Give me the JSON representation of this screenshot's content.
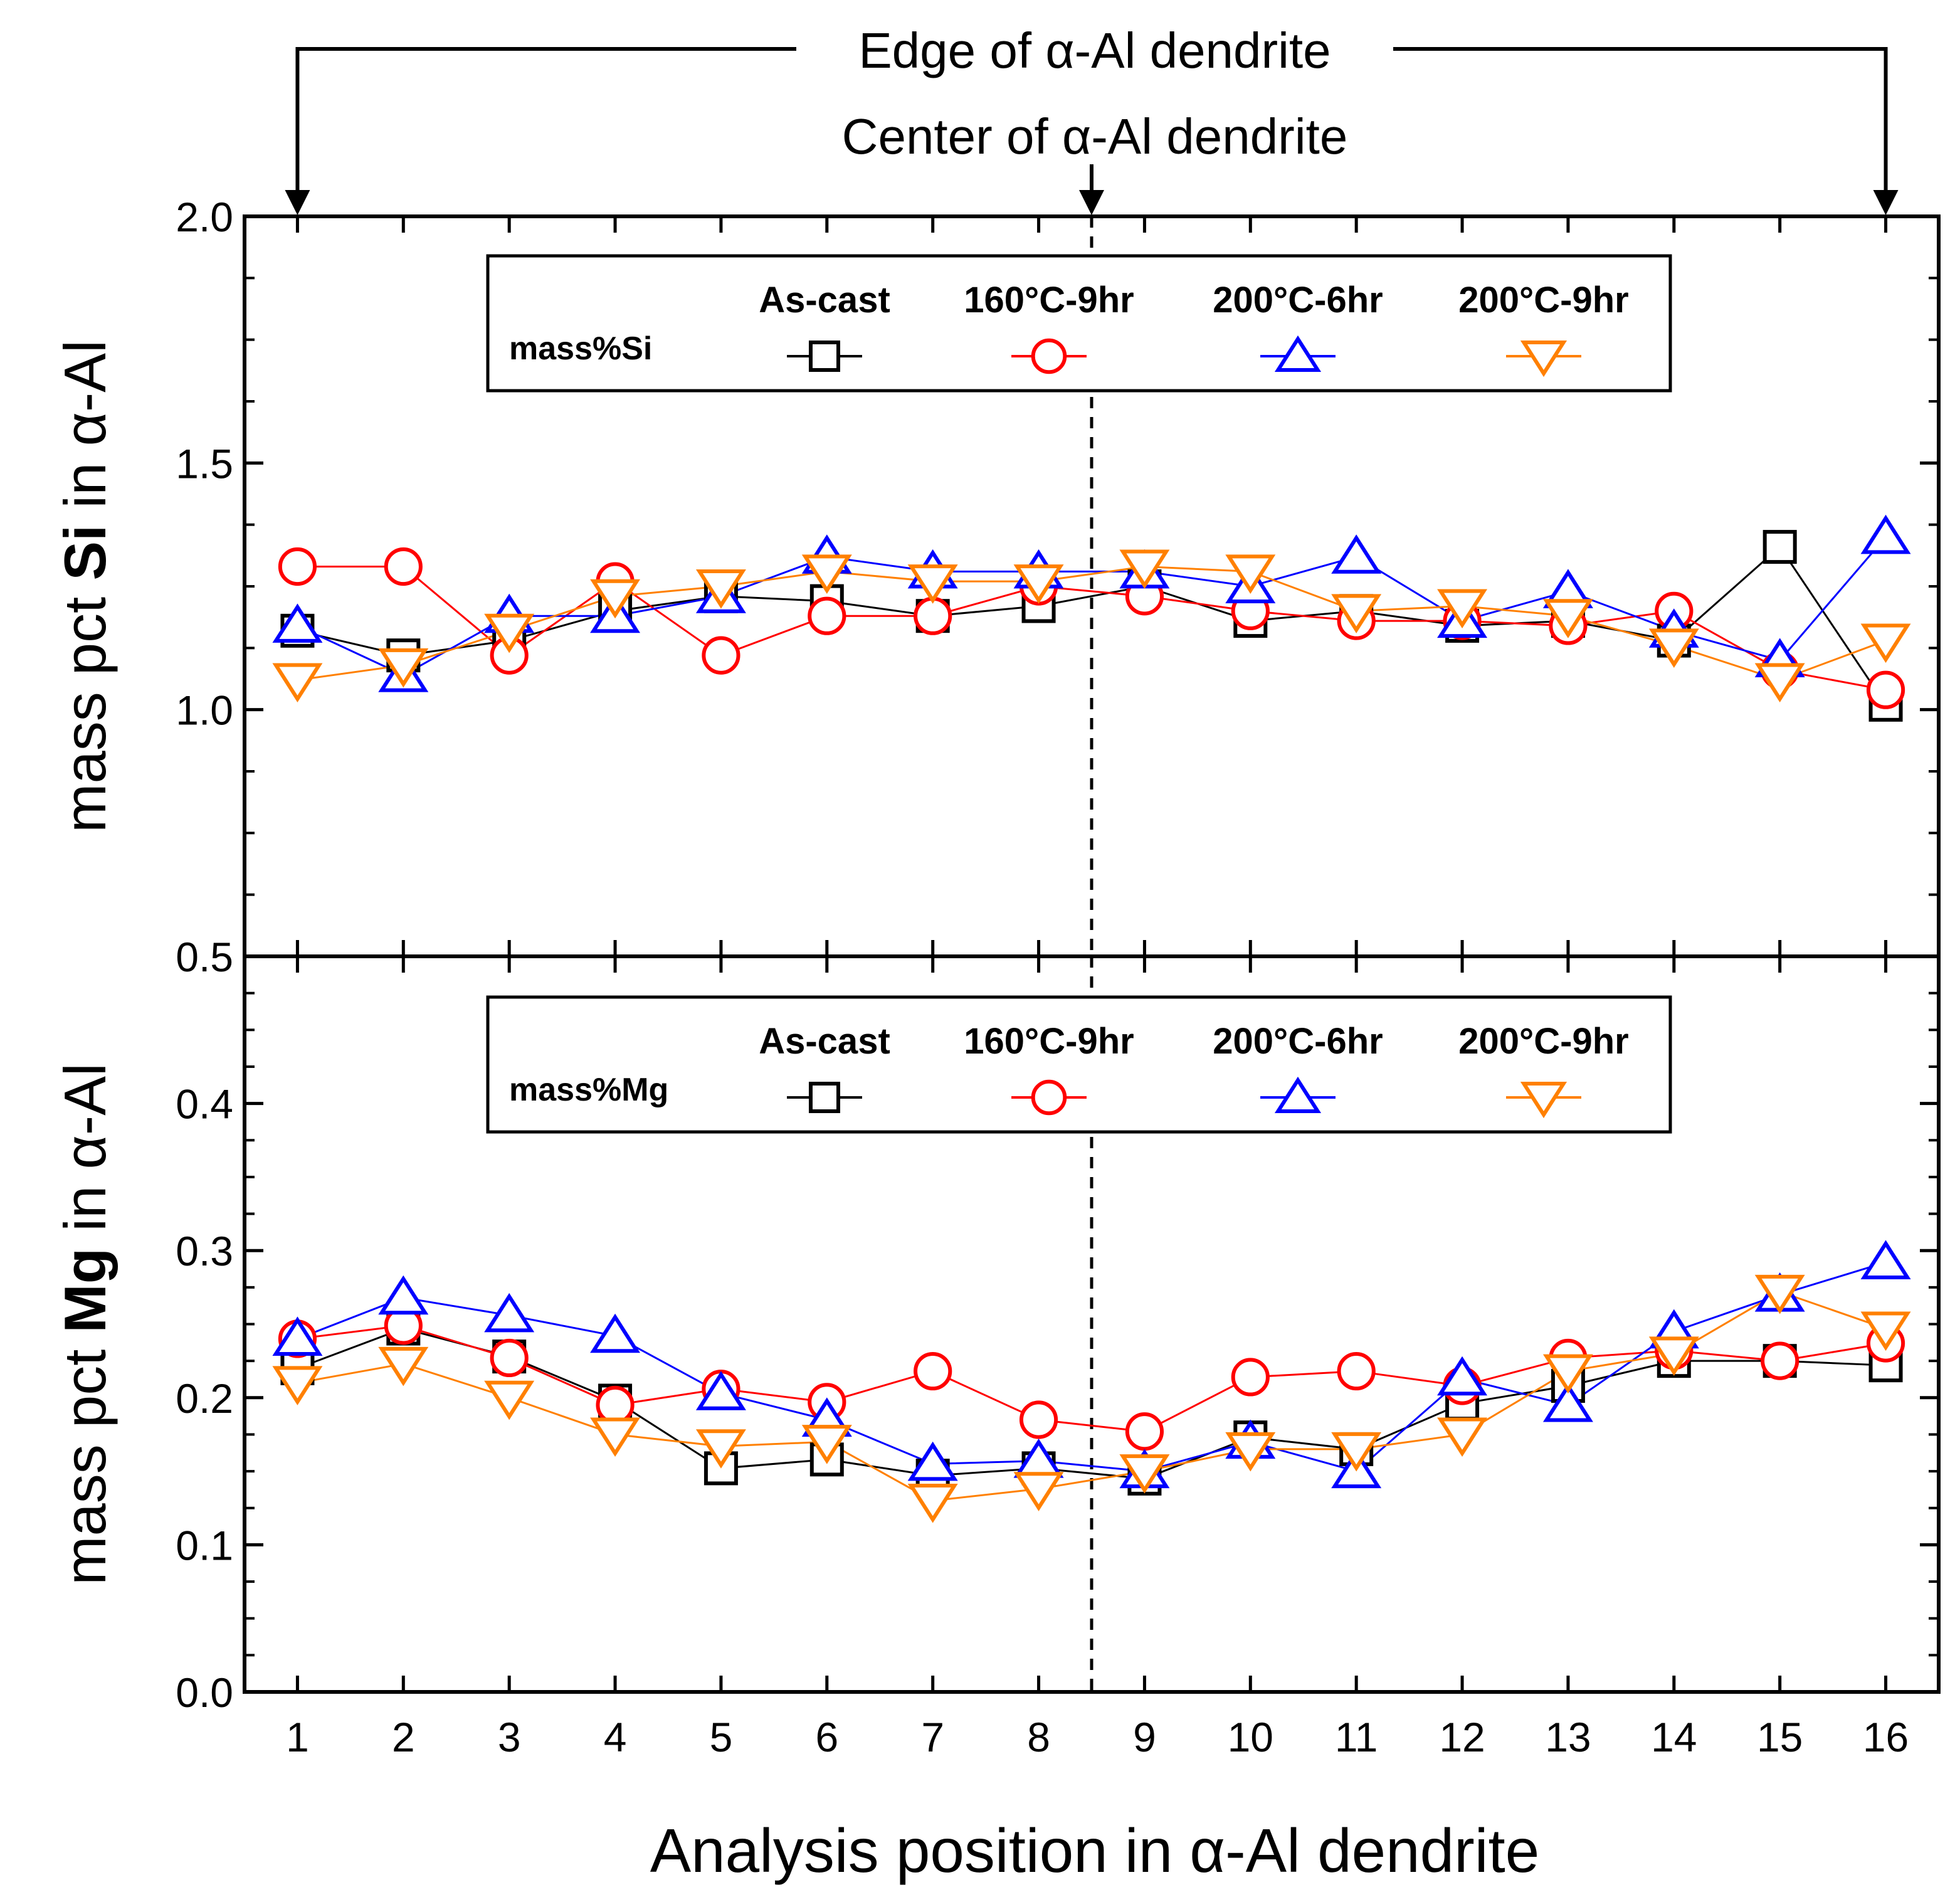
{
  "chart_data": {
    "type": "line",
    "x": [
      1,
      2,
      3,
      4,
      5,
      6,
      7,
      8,
      9,
      10,
      11,
      12,
      13,
      14,
      15,
      16
    ],
    "xlabel": "Analysis position in α-Al dendrite",
    "annotations": {
      "edge": "Edge of α-Al dendrite",
      "center": "Center of α-Al dendrite"
    },
    "panels": [
      {
        "id": "si",
        "ylabel_pre": "mass pct ",
        "ylabel_bold": "Si",
        "ylabel_post": " in α-Al",
        "ylim": [
          0.5,
          2.0
        ],
        "yticks": [
          0.5,
          1.0,
          1.5,
          2.0
        ],
        "ytick_labels": [
          "0.5",
          "1.0",
          "1.5",
          "2.0"
        ],
        "legend_label": "mass%Si",
        "series": [
          {
            "name": "As-cast",
            "color": "#000000",
            "marker": "square",
            "values": [
              1.16,
              1.11,
              1.14,
              1.2,
              1.23,
              1.22,
              1.19,
              1.21,
              1.25,
              1.18,
              1.2,
              1.17,
              1.18,
              1.14,
              1.33,
              1.01
            ]
          },
          {
            "name": "160°C-9hr",
            "color": "#ff0000",
            "marker": "circle",
            "values": [
              1.29,
              1.29,
              1.11,
              1.26,
              1.11,
              1.19,
              1.19,
              1.25,
              1.23,
              1.2,
              1.18,
              1.18,
              1.17,
              1.2,
              1.08,
              1.04
            ]
          },
          {
            "name": "200°C-6hr",
            "color": "#0000ff",
            "marker": "triangle-up",
            "values": [
              1.17,
              1.07,
              1.19,
              1.19,
              1.23,
              1.31,
              1.28,
              1.28,
              1.28,
              1.25,
              1.31,
              1.18,
              1.24,
              1.16,
              1.1,
              1.35
            ]
          },
          {
            "name": "200°C-9hr",
            "color": "#ff8000",
            "marker": "triangle-down",
            "values": [
              1.06,
              1.09,
              1.16,
              1.23,
              1.25,
              1.28,
              1.26,
              1.26,
              1.29,
              1.28,
              1.2,
              1.21,
              1.19,
              1.13,
              1.06,
              1.14
            ]
          }
        ]
      },
      {
        "id": "mg",
        "ylabel_pre": "mass pct ",
        "ylabel_bold": "Mg",
        "ylabel_post": " in α-Al",
        "ylim": [
          0.0,
          0.5
        ],
        "yticks": [
          0.0,
          0.1,
          0.2,
          0.3,
          0.4
        ],
        "ytick_labels": [
          "0.0",
          "0.1",
          "0.2",
          "0.3",
          "0.4"
        ],
        "legend_label": "mass%Mg",
        "series": [
          {
            "name": "As-cast",
            "color": "#000000",
            "marker": "square",
            "values": [
              0.22,
              0.247,
              0.228,
              0.198,
              0.152,
              0.158,
              0.147,
              0.152,
              0.145,
              0.173,
              0.165,
              0.196,
              0.208,
              0.225,
              0.225,
              0.222
            ]
          },
          {
            "name": "160°C-9hr",
            "color": "#ff0000",
            "marker": "circle",
            "values": [
              0.24,
              0.249,
              0.227,
              0.195,
              0.206,
              0.197,
              0.218,
              0.185,
              0.177,
              0.214,
              0.218,
              0.208,
              0.227,
              0.232,
              0.225,
              0.237
            ]
          },
          {
            "name": "200°C-6hr",
            "color": "#0000ff",
            "marker": "triangle-up",
            "values": [
              0.24,
              0.268,
              0.256,
              0.242,
              0.203,
              0.185,
              0.155,
              0.157,
              0.15,
              0.17,
              0.15,
              0.213,
              0.195,
              0.245,
              0.27,
              0.292
            ]
          },
          {
            "name": "200°C-9hr",
            "color": "#ff8000",
            "marker": "triangle-down",
            "values": [
              0.21,
              0.223,
              0.2,
              0.175,
              0.167,
              0.17,
              0.13,
              0.138,
              0.15,
              0.165,
              0.165,
              0.175,
              0.218,
              0.23,
              0.272,
              0.247
            ]
          }
        ]
      }
    ]
  }
}
